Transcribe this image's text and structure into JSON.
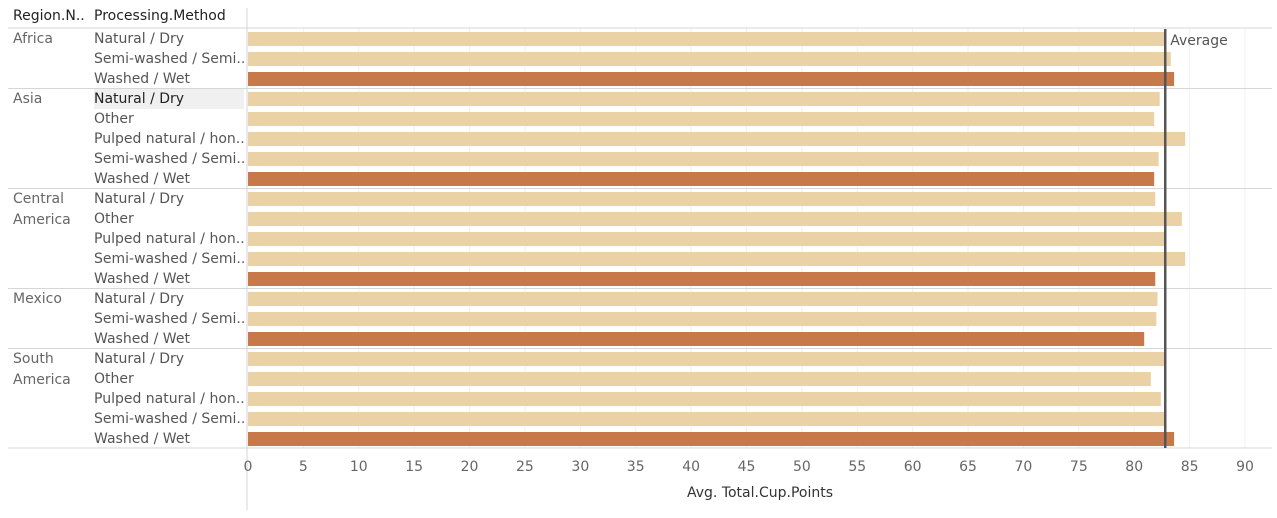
{
  "headers": {
    "region": "Region.N..",
    "method": "Processing.Method"
  },
  "reference_line": {
    "label": "Average",
    "value": 82.8
  },
  "colors": {
    "highlight": "#c8794a",
    "normal": "#ebd2a6"
  },
  "chart_data": {
    "type": "bar",
    "orientation": "horizontal",
    "xlabel": "Avg. Total.Cup.Points",
    "xlim": [
      0,
      92
    ],
    "ticks": [
      0,
      5,
      10,
      15,
      20,
      25,
      30,
      35,
      40,
      45,
      50,
      55,
      60,
      65,
      70,
      75,
      80,
      85,
      90
    ],
    "groups": [
      {
        "region": "Africa",
        "bars": [
          {
            "method": "Natural / Dry",
            "value": 82.7,
            "highlight": false
          },
          {
            "method": "Semi-washed / Semi..",
            "value": 83.3,
            "highlight": false
          },
          {
            "method": "Washed / Wet",
            "value": 83.6,
            "highlight": true
          }
        ]
      },
      {
        "region": "Asia",
        "bars": [
          {
            "method": "Natural / Dry",
            "value": 82.3,
            "highlight": false
          },
          {
            "method": "Other",
            "value": 81.8,
            "highlight": false
          },
          {
            "method": "Pulped natural / hon..",
            "value": 84.6,
            "highlight": false
          },
          {
            "method": "Semi-washed / Semi..",
            "value": 82.2,
            "highlight": false
          },
          {
            "method": "Washed / Wet",
            "value": 81.8,
            "highlight": true
          }
        ]
      },
      {
        "region": "Central America",
        "bars": [
          {
            "method": "Natural / Dry",
            "value": 81.9,
            "highlight": false
          },
          {
            "method": "Other",
            "value": 84.3,
            "highlight": false
          },
          {
            "method": "Pulped natural / hon..",
            "value": 82.8,
            "highlight": false
          },
          {
            "method": "Semi-washed / Semi..",
            "value": 84.6,
            "highlight": false
          },
          {
            "method": "Washed / Wet",
            "value": 81.9,
            "highlight": true
          }
        ]
      },
      {
        "region": "Mexico",
        "bars": [
          {
            "method": "Natural / Dry",
            "value": 82.1,
            "highlight": false
          },
          {
            "method": "Semi-washed / Semi..",
            "value": 82.0,
            "highlight": false
          },
          {
            "method": "Washed / Wet",
            "value": 80.9,
            "highlight": true
          }
        ]
      },
      {
        "region": "South America",
        "bars": [
          {
            "method": "Natural / Dry",
            "value": 82.8,
            "highlight": false
          },
          {
            "method": "Other",
            "value": 81.5,
            "highlight": false
          },
          {
            "method": "Pulped natural / hon..",
            "value": 82.4,
            "highlight": false
          },
          {
            "method": "Semi-washed / Semi..",
            "value": 82.8,
            "highlight": false
          },
          {
            "method": "Washed / Wet",
            "value": 83.6,
            "highlight": true
          }
        ]
      }
    ]
  }
}
